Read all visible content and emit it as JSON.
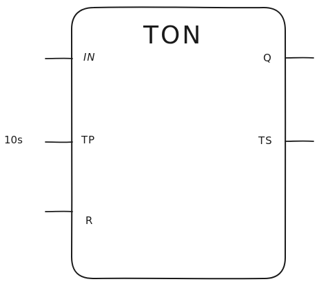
{
  "block": {
    "type_name": "TON",
    "inputs": [
      {
        "name": "IN",
        "value": ""
      },
      {
        "name": "TP",
        "value": "10s"
      },
      {
        "name": "R",
        "value": ""
      }
    ],
    "outputs": [
      {
        "name": "Q"
      },
      {
        "name": "TS"
      }
    ]
  },
  "colors": {
    "stroke": "#1a1a1a",
    "background": "#ffffff"
  }
}
